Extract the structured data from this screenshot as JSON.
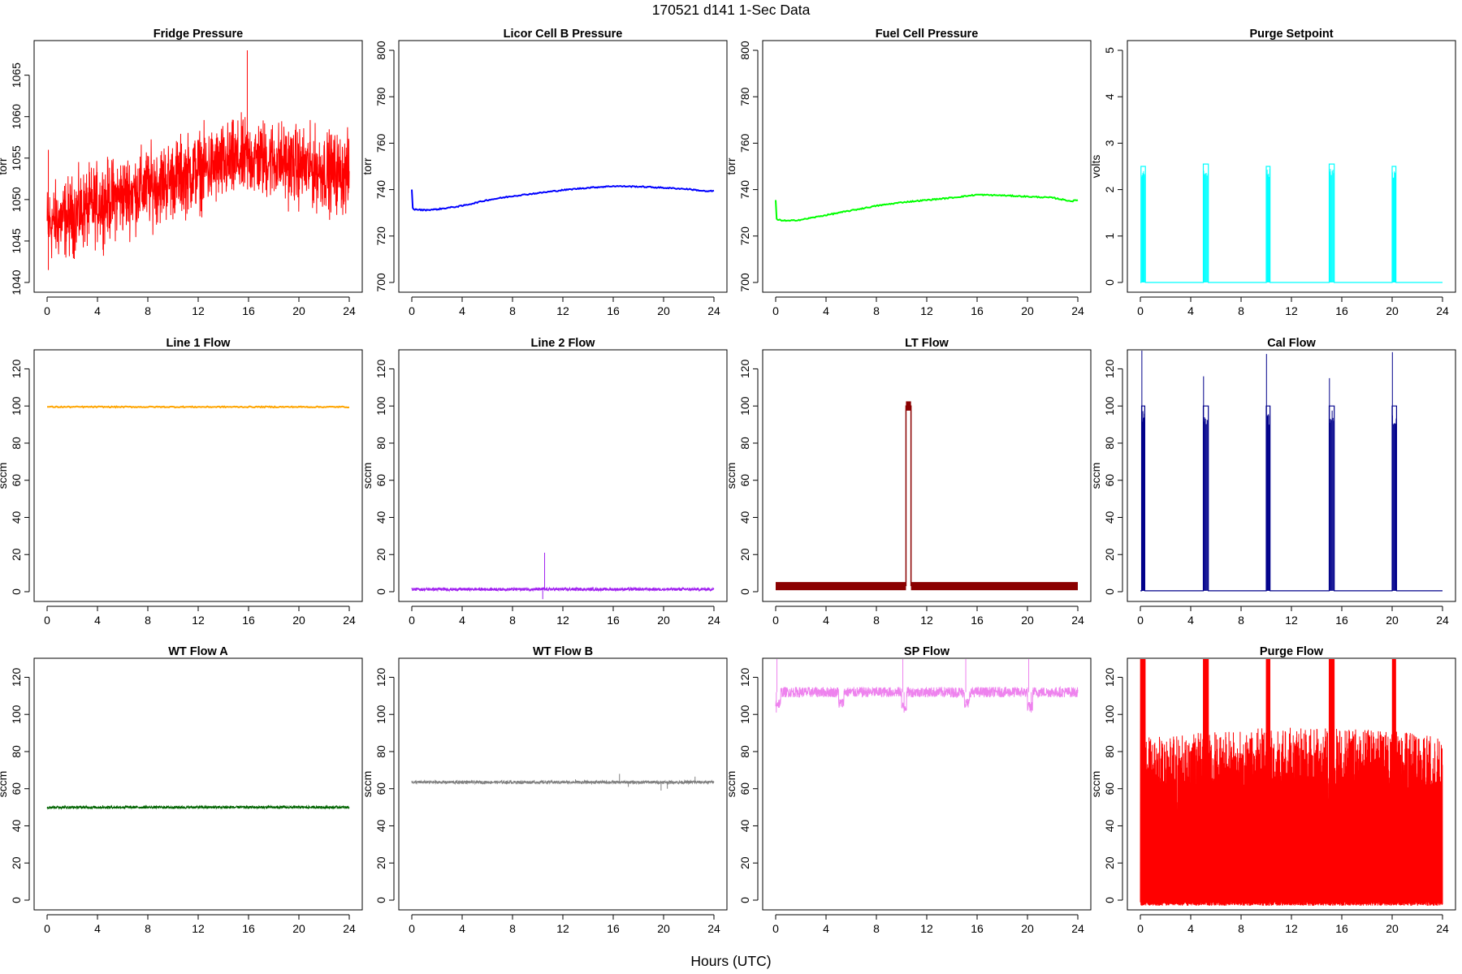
{
  "figure": {
    "title": "170521   d141   1-Sec Data",
    "xlabel": "Hours (UTC)"
  },
  "chart_data": [
    {
      "type": "line",
      "title": "Fridge Pressure",
      "ylabel": "torr",
      "color": "#ff0000",
      "xlim": [
        0,
        24
      ],
      "ylim": [
        1040,
        1068
      ],
      "xticks": [
        0,
        4,
        8,
        12,
        16,
        20,
        24
      ],
      "yticks": [
        1040,
        1045,
        1050,
        1055,
        1060,
        1065
      ],
      "series": [
        {
          "name": "Fridge Pressure",
          "style": "noise",
          "x": [
            0,
            2,
            4,
            6,
            8,
            10,
            12,
            14,
            16,
            18,
            20,
            22,
            24
          ],
          "center": [
            1047,
            1048,
            1049.5,
            1050.5,
            1051.5,
            1052.5,
            1053.5,
            1054.2,
            1055,
            1054.8,
            1054,
            1053.5,
            1053
          ],
          "halfwidth": [
            5.5,
            5.5,
            5.5,
            5.5,
            5.5,
            5.5,
            5.5,
            5.5,
            5.5,
            5.5,
            5.5,
            5.5,
            5.5
          ],
          "spikes": [
            [
              15.9,
              1068
            ],
            [
              0.1,
              1056
            ],
            [
              0.1,
              1041.5
            ]
          ]
        }
      ]
    },
    {
      "type": "line",
      "title": "Licor Cell B Pressure",
      "ylabel": "torr",
      "color": "#0000ff",
      "xlim": [
        0,
        24
      ],
      "ylim": [
        700,
        800
      ],
      "xticks": [
        0,
        4,
        8,
        12,
        16,
        20,
        24
      ],
      "yticks": [
        700,
        720,
        740,
        760,
        780,
        800
      ],
      "series": [
        {
          "name": "Licor Cell B Pressure",
          "style": "line",
          "x": [
            0,
            0.05,
            0.1,
            1,
            2,
            4,
            6,
            8,
            10,
            12,
            14,
            16,
            18,
            20,
            22,
            23.5,
            24
          ],
          "y": [
            740,
            733,
            731.5,
            731.2,
            731.5,
            733,
            735.5,
            737.2,
            738.5,
            739.8,
            740.8,
            741.5,
            741.3,
            740.8,
            740.2,
            739.2,
            739.5
          ]
        }
      ]
    },
    {
      "type": "line",
      "title": "Fuel Cell Pressure",
      "ylabel": "torr",
      "color": "#00ff00",
      "xlim": [
        0,
        24
      ],
      "ylim": [
        700,
        800
      ],
      "xticks": [
        0,
        4,
        8,
        12,
        16,
        20,
        24
      ],
      "yticks": [
        700,
        720,
        740,
        760,
        780,
        800
      ],
      "series": [
        {
          "name": "Fuel Cell Pressure",
          "style": "line",
          "x": [
            0,
            0.05,
            0.1,
            1,
            2,
            4,
            6,
            8,
            10,
            12,
            14,
            16,
            18,
            20,
            22,
            23.5,
            24
          ],
          "y": [
            735.5,
            728,
            727,
            726.5,
            727,
            729,
            731,
            733,
            734.5,
            735.5,
            736.5,
            737.8,
            737.5,
            737,
            736.5,
            735,
            735.5
          ]
        }
      ]
    },
    {
      "type": "line",
      "title": "Purge Setpoint",
      "ylabel": "volts",
      "color": "#00ffff",
      "xlim": [
        0,
        24
      ],
      "ylim": [
        0,
        5
      ],
      "xticks": [
        0,
        4,
        8,
        12,
        16,
        20,
        24
      ],
      "yticks": [
        0,
        1,
        2,
        3,
        4,
        5
      ],
      "series": [
        {
          "name": "Purge Setpoint",
          "style": "pulses",
          "baseline": 0,
          "pulses": [
            [
              0.05,
              0.4,
              2.5
            ],
            [
              5.0,
              5.4,
              2.55
            ],
            [
              10.0,
              10.3,
              2.5
            ],
            [
              15.0,
              15.4,
              2.55
            ],
            [
              20.0,
              20.3,
              2.5
            ]
          ]
        }
      ]
    },
    {
      "type": "line",
      "title": "Line 1 Flow",
      "ylabel": "sccm",
      "color": "#ffa500",
      "xlim": [
        0,
        24
      ],
      "ylim": [
        0,
        125
      ],
      "xticks": [
        0,
        4,
        8,
        12,
        16,
        20,
        24
      ],
      "yticks": [
        0,
        20,
        40,
        60,
        80,
        100,
        120
      ],
      "series": [
        {
          "name": "Line 1 Flow",
          "style": "line",
          "x": [
            0,
            24
          ],
          "y": [
            99.5,
            99.5
          ]
        }
      ]
    },
    {
      "type": "line",
      "title": "Line 2 Flow",
      "ylabel": "sccm",
      "color": "#a020f0",
      "xlim": [
        0,
        24
      ],
      "ylim": [
        0,
        125
      ],
      "xticks": [
        0,
        4,
        8,
        12,
        16,
        20,
        24
      ],
      "yticks": [
        0,
        20,
        40,
        60,
        80,
        100,
        120
      ],
      "series": [
        {
          "name": "Line 2 Flow",
          "style": "band",
          "x": [
            0,
            24
          ],
          "center": [
            1.3,
            1.3
          ],
          "halfwidth": [
            0.8,
            0.8
          ],
          "spikes": [
            [
              10.55,
              21
            ],
            [
              10.4,
              -4
            ]
          ]
        }
      ]
    },
    {
      "type": "line",
      "title": "LT Flow",
      "ylabel": "sccm",
      "color": "#8b0000",
      "xlim": [
        0,
        24
      ],
      "ylim": [
        0,
        125
      ],
      "xticks": [
        0,
        4,
        8,
        12,
        16,
        20,
        24
      ],
      "yticks": [
        0,
        20,
        40,
        60,
        80,
        100,
        120
      ],
      "series": [
        {
          "name": "LT Flow",
          "style": "bandpulse",
          "center": 3,
          "halfwidth": 2.2,
          "pulse": [
            10.35,
            10.75,
            100
          ]
        }
      ]
    },
    {
      "type": "line",
      "title": "Cal Flow",
      "ylabel": "sccm",
      "color": "#00008b",
      "xlim": [
        0,
        24
      ],
      "ylim": [
        0,
        125
      ],
      "xticks": [
        0,
        4,
        8,
        12,
        16,
        20,
        24
      ],
      "yticks": [
        0,
        20,
        40,
        60,
        80,
        100,
        120
      ],
      "series": [
        {
          "name": "Cal Flow",
          "style": "pulses",
          "baseline": 0.5,
          "pulses": [
            [
              0.1,
              0.35,
              100
            ],
            [
              5.0,
              5.4,
              100
            ],
            [
              10.0,
              10.3,
              100
            ],
            [
              15.0,
              15.4,
              100
            ],
            [
              20.0,
              20.35,
              100
            ]
          ],
          "spikes": [
            [
              0.12,
              132
            ],
            [
              5.02,
              116
            ],
            [
              10.02,
              128
            ],
            [
              15.02,
              115
            ],
            [
              20.02,
              129
            ]
          ]
        }
      ]
    },
    {
      "type": "line",
      "title": "WT Flow A",
      "ylabel": "sccm",
      "color": "#006400",
      "xlim": [
        0,
        24
      ],
      "ylim": [
        0,
        125
      ],
      "xticks": [
        0,
        4,
        8,
        12,
        16,
        20,
        24
      ],
      "yticks": [
        0,
        20,
        40,
        60,
        80,
        100,
        120
      ],
      "series": [
        {
          "name": "WT Flow A",
          "style": "band",
          "x": [
            0,
            24
          ],
          "center": [
            50,
            50
          ],
          "halfwidth": [
            0.7,
            0.7
          ]
        }
      ]
    },
    {
      "type": "line",
      "title": "WT Flow B",
      "ylabel": "sccm",
      "color": "#808080",
      "xlim": [
        0,
        24
      ],
      "ylim": [
        0,
        125
      ],
      "xticks": [
        0,
        4,
        8,
        12,
        16,
        20,
        24
      ],
      "yticks": [
        0,
        20,
        40,
        60,
        80,
        100,
        120
      ],
      "series": [
        {
          "name": "WT Flow B",
          "style": "band",
          "x": [
            0,
            24
          ],
          "center": [
            63.5,
            63.5
          ],
          "halfwidth": [
            0.8,
            0.8
          ],
          "spikes": [
            [
              16.5,
              68
            ],
            [
              19.8,
              59
            ],
            [
              20.3,
              60
            ],
            [
              22.5,
              66.5
            ],
            [
              17.2,
              61
            ],
            [
              13.0,
              65
            ]
          ]
        }
      ]
    },
    {
      "type": "line",
      "title": "SP Flow",
      "ylabel": "sccm",
      "color": "#ee82ee",
      "xlim": [
        0,
        24
      ],
      "ylim": [
        0,
        125
      ],
      "xticks": [
        0,
        4,
        8,
        12,
        16,
        20,
        24
      ],
      "yticks": [
        0,
        20,
        40,
        60,
        80,
        100,
        120
      ],
      "series": [
        {
          "name": "SP Flow",
          "style": "band",
          "x": [
            0,
            24
          ],
          "center": [
            112,
            112
          ],
          "halfwidth": [
            2.8,
            2.8
          ],
          "dips": [
            [
              0,
              0.4,
              106
            ],
            [
              5.0,
              5.4,
              106
            ],
            [
              10.0,
              10.4,
              104
            ],
            [
              15.0,
              15.4,
              106
            ],
            [
              20.0,
              20.4,
              104
            ]
          ],
          "spikes": [
            [
              0.1,
              135
            ],
            [
              10.1,
              131
            ],
            [
              15.1,
              135
            ],
            [
              20.1,
              130
            ],
            [
              0.05,
              101
            ],
            [
              10.2,
              101
            ],
            [
              20.3,
              101
            ]
          ]
        }
      ]
    },
    {
      "type": "line",
      "title": "Purge Flow",
      "ylabel": "sccm",
      "color": "#ff0000",
      "xlim": [
        0,
        24
      ],
      "ylim": [
        0,
        125
      ],
      "xticks": [
        0,
        4,
        8,
        12,
        16,
        20,
        24
      ],
      "yticks": [
        0,
        20,
        40,
        60,
        80,
        100,
        120
      ],
      "series": [
        {
          "name": "Purge Flow",
          "style": "purge",
          "low": -3,
          "high": [
            0,
            2,
            4,
            6,
            8,
            10,
            12,
            14,
            16,
            18,
            20,
            22,
            24
          ],
          "highy": [
            88,
            88,
            90,
            91,
            92,
            93,
            93,
            93,
            92,
            92,
            91,
            90,
            88
          ],
          "saturated": [
            [
              0,
              0.4
            ],
            [
              5.0,
              5.4
            ],
            [
              10.0,
              10.3
            ],
            [
              15.0,
              15.4
            ],
            [
              20.0,
              20.3
            ]
          ]
        }
      ]
    }
  ]
}
